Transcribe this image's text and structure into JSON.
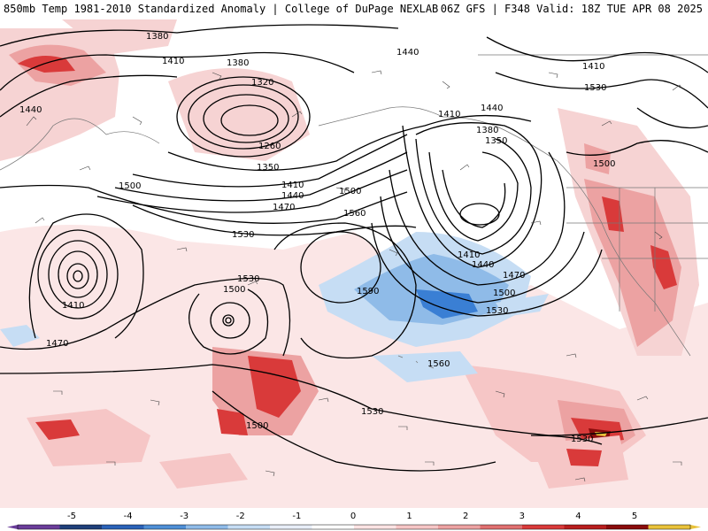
{
  "header": {
    "left": "850mb Temp 1981-2010 Standardized Anomaly | College of DuPage NEXLAB",
    "right": "06Z GFS | F348 Valid: 18Z TUE APR 08 2025"
  },
  "colors": {
    "strong_cold": "#3a7fd4",
    "cold": "#8fbbe8",
    "light_cold": "#c6ddf4",
    "light_warm": "#f6d3d3",
    "warm": "#eca2a2",
    "hot": "#d93a3a",
    "very_hot": "#a81414",
    "contour": "#000000"
  },
  "contour_labels": [
    "1380",
    "1410",
    "1380",
    "1320",
    "1260",
    "1350",
    "1440",
    "1410",
    "1440",
    "1470",
    "1500",
    "1530",
    "1410",
    "1380",
    "1350",
    "1500",
    "1440",
    "1410",
    "1500",
    "1530",
    "1560",
    "1590",
    "1440",
    "1470",
    "1500",
    "1530",
    "1560",
    "1410",
    "1470",
    "1500",
    "1530",
    "1500",
    "1530",
    "1440",
    "1410",
    "1530"
  ],
  "colorbar": {
    "ticks": [
      "-5",
      "-4",
      "-3",
      "-2",
      "-1",
      "0",
      "1",
      "2",
      "3",
      "4",
      "5"
    ],
    "colors": [
      "#6a3d9a",
      "#1f3f7a",
      "#2a62b8",
      "#4f8fd6",
      "#8fbbe8",
      "#c6ddf4",
      "#e8eef8",
      "#ffffff",
      "#fbe3e3",
      "#f6c6c6",
      "#eca2a2",
      "#e07070",
      "#d93a3a",
      "#b81e1e",
      "#8a0c0c",
      "#e9c23a"
    ]
  }
}
